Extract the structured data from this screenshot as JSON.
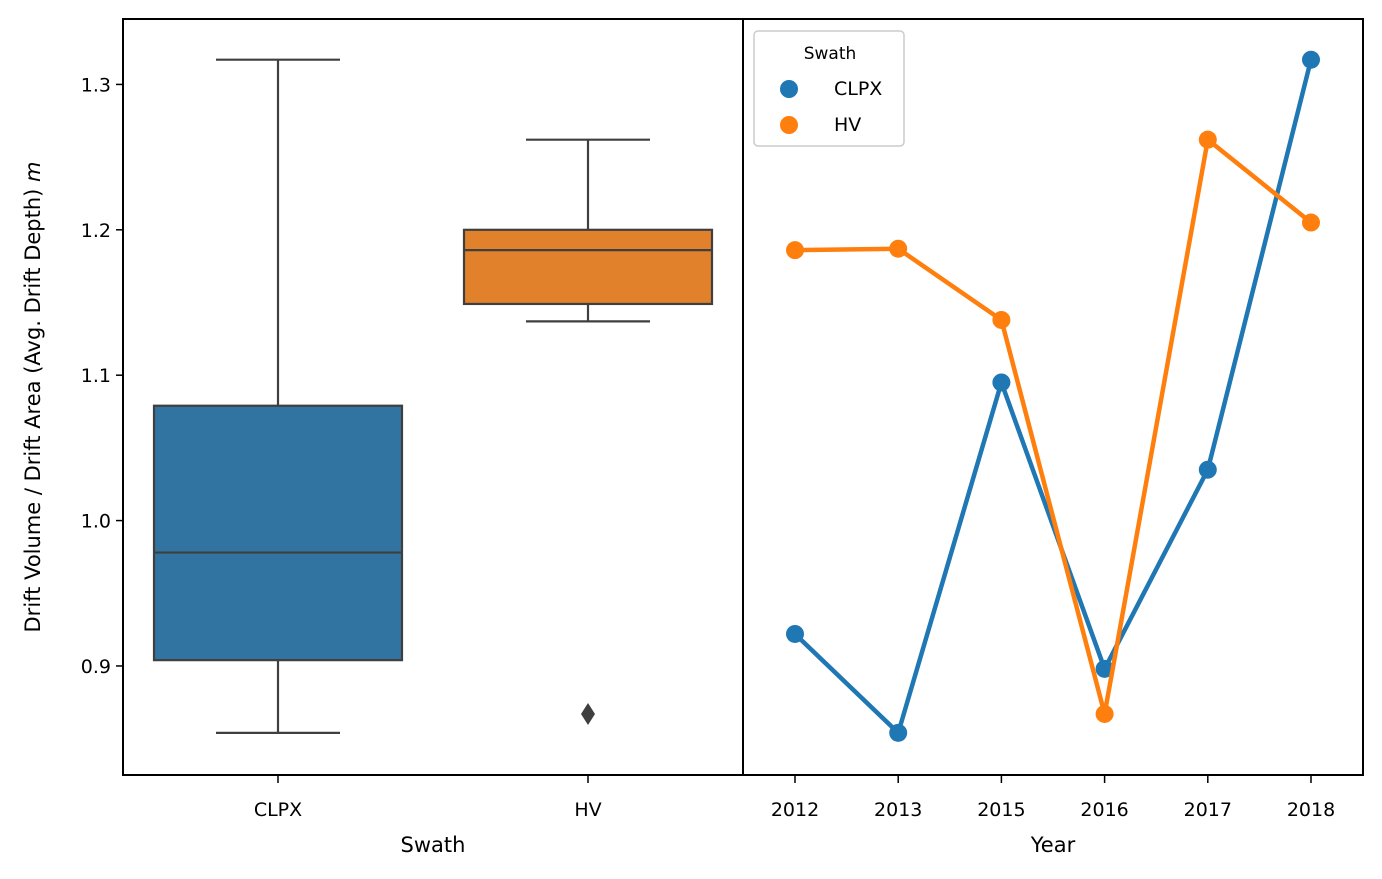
{
  "chart_data": [
    {
      "type": "box",
      "xlabel": "Swath",
      "ylabel": "Drift Volume / Drift Area (Avg. Drift Depth) ",
      "ylabel_unit": "m",
      "ylim": [
        0.825,
        1.345
      ],
      "yticks": [
        0.9,
        1.0,
        1.1,
        1.2,
        1.3
      ],
      "ytick_labels": [
        "0.9",
        "1.0",
        "1.1",
        "1.2",
        "1.3"
      ],
      "categories": [
        "CLPX",
        "HV"
      ],
      "boxes": [
        {
          "name": "CLPX",
          "color": "#3274a1",
          "whisker_low": 0.854,
          "q1": 0.904,
          "median": 0.978,
          "q3": 1.079,
          "whisker_high": 1.317,
          "outliers": []
        },
        {
          "name": "HV",
          "color": "#e1812c",
          "whisker_low": 1.137,
          "q1": 1.149,
          "median": 1.186,
          "q3": 1.2,
          "whisker_high": 1.262,
          "outliers": [
            0.867
          ]
        }
      ]
    },
    {
      "type": "line",
      "xlabel": "Year",
      "categories": [
        "2012",
        "2013",
        "2015",
        "2016",
        "2017",
        "2018"
      ],
      "ylim": [
        0.825,
        1.345
      ],
      "legend": {
        "title": "Swath",
        "position": "top-left"
      },
      "series": [
        {
          "name": "CLPX",
          "color": "#1f77b4",
          "values": [
            0.922,
            0.854,
            1.095,
            0.898,
            1.035,
            1.317
          ]
        },
        {
          "name": "HV",
          "color": "#ff7f0e",
          "values": [
            1.186,
            1.187,
            1.138,
            0.867,
            1.262,
            1.205
          ]
        }
      ]
    }
  ]
}
